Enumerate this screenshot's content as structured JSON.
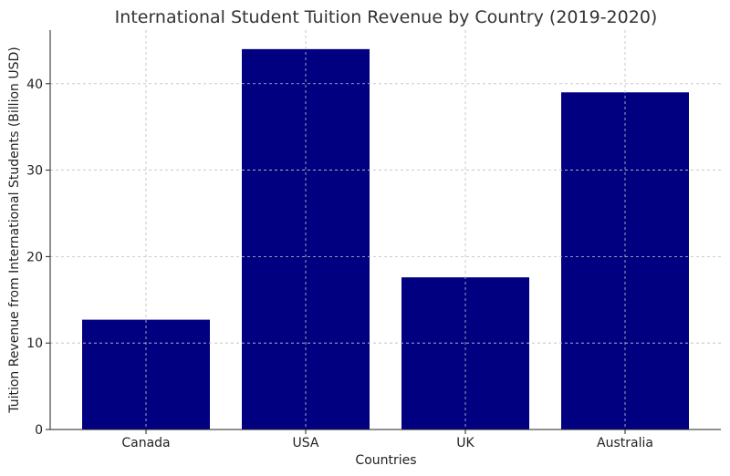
{
  "chart_data": {
    "type": "bar",
    "title": "International Student Tuition Revenue by Country (2019-2020)",
    "xlabel": "Countries",
    "ylabel": "Tuition Revenue from International Students (Billion USD)",
    "categories": [
      "Canada",
      "USA",
      "UK",
      "Australia"
    ],
    "values": [
      12.7,
      44.0,
      17.6,
      39.0
    ],
    "ylim": [
      0,
      46.2
    ],
    "yticks": [
      0,
      10,
      20,
      30,
      40
    ],
    "grid": true,
    "bar_color": "#000080"
  }
}
